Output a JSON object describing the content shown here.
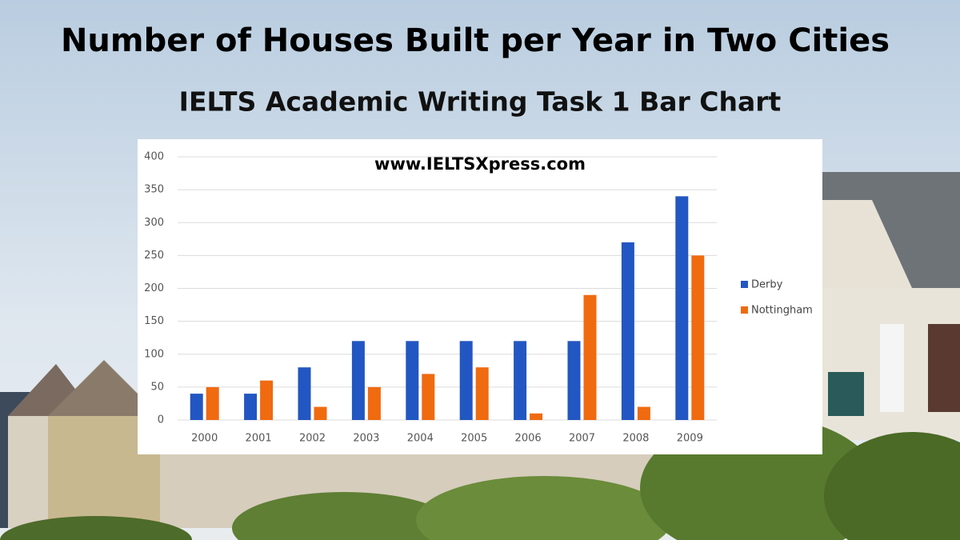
{
  "chart_data": {
    "type": "bar",
    "title": "Number of Houses Built per Year in Two Cities",
    "subtitle": "IELTS Academic Writing Task 1 Bar Chart",
    "annotation": "www.IELTSXpress.com",
    "categories": [
      "2000",
      "2001",
      "2002",
      "2003",
      "2004",
      "2005",
      "2006",
      "2007",
      "2008",
      "2009"
    ],
    "series": [
      {
        "name": "Derby",
        "color": "#2256c2",
        "values": [
          40,
          40,
          80,
          120,
          120,
          120,
          120,
          120,
          270,
          340
        ]
      },
      {
        "name": "Nottingham",
        "color": "#f06a10",
        "values": [
          50,
          60,
          20,
          50,
          70,
          80,
          10,
          190,
          20,
          250
        ]
      }
    ],
    "ylim": [
      0,
      400
    ],
    "yticks": [
      0,
      50,
      100,
      150,
      200,
      250,
      300,
      350,
      400
    ],
    "grid": true,
    "legend": "right"
  }
}
